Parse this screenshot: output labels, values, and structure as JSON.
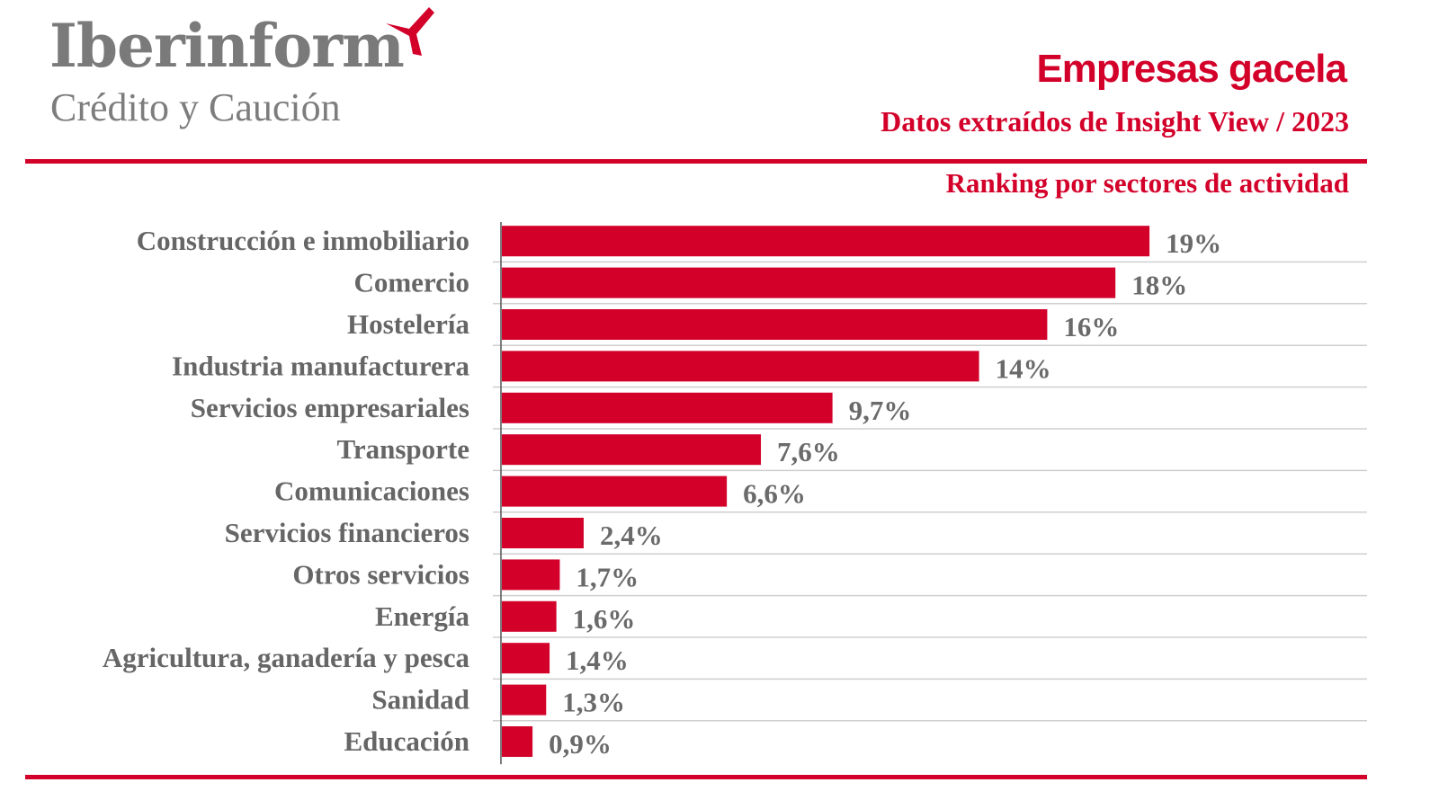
{
  "logo": {
    "name": "Iberinform",
    "tagline": "Crédito y Caución"
  },
  "header": {
    "title": "Empresas gacela",
    "subtitle": "Datos extraídos de Insight View / 2023"
  },
  "colors": {
    "accent": "#d3002a",
    "text": "#666666",
    "grid": "#cfcfcf"
  },
  "chart_data": {
    "type": "bar",
    "orientation": "horizontal",
    "title": "Ranking por sectores de actividad",
    "categories": [
      "Construcción e inmobiliario",
      "Comercio",
      "Hostelería",
      "Industria manufacturera",
      "Servicios empresariales",
      "Transporte",
      "Comunicaciones",
      "Servicios financieros",
      "Otros servicios",
      "Energía",
      "Agricultura, ganadería y pesca",
      "Sanidad",
      "Educación"
    ],
    "values": [
      19,
      18,
      16,
      14,
      9.7,
      7.6,
      6.6,
      2.4,
      1.7,
      1.6,
      1.4,
      1.3,
      0.9
    ],
    "value_labels": [
      "19%",
      "18%",
      "16%",
      "14%",
      "9,7%",
      "7,6%",
      "6,6%",
      "2,4%",
      "1,7%",
      "1,6%",
      "1,4%",
      "1,3%",
      "0,9%"
    ],
    "unit": "%",
    "xlim": [
      0,
      40
    ],
    "grid": true,
    "legend": "none"
  }
}
